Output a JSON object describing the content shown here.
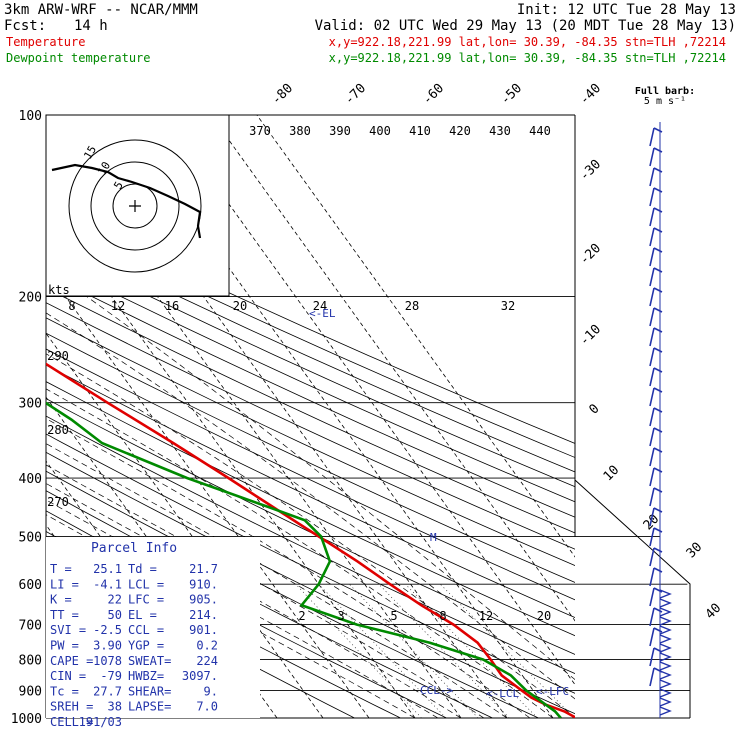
{
  "header": {
    "model": "3km ARW-WRF -- NCAR/MMM",
    "init": "Init: 12 UTC Tue 28 May 13",
    "fcst_label": "Fcst:",
    "fcst_value": "14 h",
    "valid": "Valid: 02 UTC Wed 29 May 13 (20 MDT Tue 28 May 13)"
  },
  "legend": [
    {
      "label": "Temperature",
      "info": "x,y=922.18,221.99   lat,lon= 30.39, -84.35   stn=TLH ,72214",
      "color": "#e00000"
    },
    {
      "label": "Dewpoint temperature",
      "info": "x,y=922.18,221.99   lat,lon= 30.39, -84.35   stn=TLH ,72214",
      "color": "#008a00"
    }
  ],
  "barb_legend": {
    "line1": "Full barb:",
    "line2": "5 m s⁻¹"
  },
  "hodograph": {
    "units": "kts",
    "ring_labels": [
      "5",
      "10",
      "15"
    ]
  },
  "parcel_info": {
    "title": "Parcel Info",
    "rows": [
      [
        "T   =",
        "25.1",
        "Td =",
        "21.7"
      ],
      [
        "LI  =",
        "-4.1",
        "LCL =",
        "910."
      ],
      [
        "K   =",
        "22",
        "LFC =",
        "905."
      ],
      [
        "TT  =",
        "50",
        "EL  =",
        "214."
      ],
      [
        "SVI =",
        "-2.5",
        "CCL =",
        "901."
      ],
      [
        "PW  =",
        "3.90",
        "YGP =",
        "0.2"
      ],
      [
        "CAPE =",
        "1078",
        "SWEAT=",
        "224"
      ],
      [
        "CIN =",
        "-79",
        "HWBZ=",
        "3097."
      ],
      [
        "Tc  =",
        "27.7",
        "SHEAR=",
        "9."
      ],
      [
        "SREH =",
        "38",
        "LAPSE=",
        "7.0"
      ],
      [
        "CELL =",
        "191/03",
        "",
        ""
      ]
    ]
  },
  "level_labels": {
    "ccl": "CCL->",
    "lcl": "<-LCL",
    "lfc": "<-LFC",
    "el": "<-EL",
    "m": "M"
  },
  "chart_data": {
    "type": "line",
    "pressure_levels": [
      100,
      200,
      300,
      400,
      500,
      600,
      700,
      800,
      900,
      1000
    ],
    "isotherm_labels": [
      -80,
      -70,
      -60,
      -50,
      -40,
      -30,
      -20,
      -10,
      0,
      10,
      20,
      30,
      40
    ],
    "theta_labels": [
      370,
      380,
      390,
      400,
      410,
      420,
      430,
      440
    ],
    "theta_side_labels": [
      290,
      280,
      270
    ],
    "mixing_ratio_labels_upper": [
      8,
      12,
      16,
      20,
      24,
      28,
      32
    ],
    "mixing_ratio_labels_lower": [
      2,
      3,
      5,
      8,
      12,
      20
    ],
    "series": [
      {
        "name": "Temperature",
        "color": "#e00000",
        "points": [
          [
            1000,
            25.1
          ],
          [
            975,
            23.5
          ],
          [
            950,
            20.5
          ],
          [
            925,
            18.5
          ],
          [
            900,
            17.5
          ],
          [
            850,
            15.5
          ],
          [
            800,
            15.6
          ],
          [
            750,
            15.4
          ],
          [
            700,
            13.0
          ],
          [
            650,
            9.0
          ],
          [
            600,
            5.5
          ],
          [
            550,
            2.0
          ],
          [
            500,
            -2.5
          ],
          [
            450,
            -7.5
          ],
          [
            400,
            -13.0
          ],
          [
            350,
            -19.5
          ],
          [
            300,
            -27.5
          ],
          [
            250,
            -36.5
          ],
          [
            200,
            -47.0
          ],
          [
            150,
            -57.5
          ],
          [
            125,
            -61.5
          ],
          [
            100,
            -64.0
          ]
        ]
      },
      {
        "name": "Dewpoint temperature",
        "color": "#008a00",
        "points": [
          [
            1000,
            21.7
          ],
          [
            975,
            21.5
          ],
          [
            950,
            20.5
          ],
          [
            925,
            19.5
          ],
          [
            900,
            18.5
          ],
          [
            850,
            17.5
          ],
          [
            800,
            14.0
          ],
          [
            750,
            5.0
          ],
          [
            700,
            -8.0
          ],
          [
            650,
            -17.0
          ],
          [
            600,
            -10.0
          ],
          [
            550,
            -4.0
          ],
          [
            500,
            -2.0
          ],
          [
            470,
            -3.0
          ],
          [
            450,
            -8.0
          ],
          [
            400,
            -22.0
          ],
          [
            350,
            -35.0
          ],
          [
            320,
            -38.0
          ],
          [
            300,
            -41.0
          ],
          [
            275,
            -42.0
          ],
          [
            250,
            -46.0
          ],
          [
            200,
            -61.0
          ],
          [
            175,
            -66.0
          ],
          [
            150,
            -72.0
          ],
          [
            125,
            -77.0
          ],
          [
            100,
            -83.0
          ]
        ]
      }
    ]
  }
}
